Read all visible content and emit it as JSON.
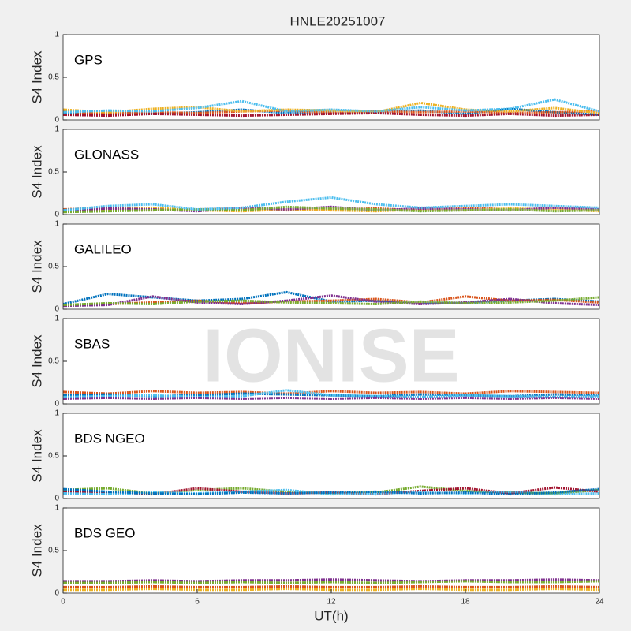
{
  "title": "HNLE20251007",
  "watermark": "IONISE",
  "chart_data": [
    {
      "type": "line",
      "label": "GPS",
      "ylabel": "S4 Index",
      "xlim": [
        0,
        24
      ],
      "ylim": [
        0,
        1
      ],
      "yticks": [
        0,
        0.5,
        1
      ],
      "x": [
        0,
        2,
        4,
        6,
        8,
        10,
        12,
        14,
        16,
        18,
        20,
        22,
        24
      ],
      "series": [
        {
          "color": "#0072BD",
          "values": [
            0.08,
            0.1,
            0.07,
            0.09,
            0.12,
            0.08,
            0.1,
            0.09,
            0.11,
            0.07,
            0.13,
            0.09,
            0.06
          ]
        },
        {
          "color": "#D95319",
          "values": [
            0.1,
            0.07,
            0.09,
            0.08,
            0.1,
            0.11,
            0.08,
            0.1,
            0.09,
            0.1,
            0.08,
            0.09,
            0.1
          ]
        },
        {
          "color": "#EDB120",
          "values": [
            0.12,
            0.09,
            0.13,
            0.15,
            0.1,
            0.12,
            0.11,
            0.09,
            0.2,
            0.12,
            0.1,
            0.14,
            0.08
          ]
        },
        {
          "color": "#A2142F",
          "values": [
            0.06,
            0.05,
            0.07,
            0.06,
            0.05,
            0.06,
            0.07,
            0.08,
            0.06,
            0.05,
            0.07,
            0.05,
            0.06
          ]
        },
        {
          "color": "#4DBEEE",
          "values": [
            0.09,
            0.11,
            0.1,
            0.14,
            0.22,
            0.1,
            0.12,
            0.1,
            0.15,
            0.11,
            0.13,
            0.24,
            0.1
          ]
        }
      ]
    },
    {
      "type": "line",
      "label": "GLONASS",
      "ylabel": "S4 Index",
      "xlim": [
        0,
        24
      ],
      "ylim": [
        0,
        1
      ],
      "yticks": [
        0,
        0.5,
        1
      ],
      "x": [
        0,
        2,
        4,
        6,
        8,
        10,
        12,
        14,
        16,
        18,
        20,
        22,
        24
      ],
      "series": [
        {
          "color": "#D95319",
          "values": [
            0.06,
            0.08,
            0.05,
            0.06,
            0.07,
            0.05,
            0.06,
            0.07,
            0.05,
            0.08,
            0.06,
            0.07,
            0.05
          ]
        },
        {
          "color": "#EDB120",
          "values": [
            0.04,
            0.06,
            0.08,
            0.05,
            0.04,
            0.06,
            0.05,
            0.04,
            0.06,
            0.05,
            0.07,
            0.06,
            0.04
          ]
        },
        {
          "color": "#7E2F8E",
          "values": [
            0.05,
            0.07,
            0.06,
            0.04,
            0.08,
            0.06,
            0.09,
            0.05,
            0.07,
            0.06,
            0.05,
            0.08,
            0.06
          ]
        },
        {
          "color": "#77AC30",
          "values": [
            0.03,
            0.04,
            0.05,
            0.06,
            0.05,
            0.09,
            0.07,
            0.06,
            0.04,
            0.05,
            0.06,
            0.04,
            0.05
          ]
        },
        {
          "color": "#4DBEEE",
          "values": [
            0.05,
            0.1,
            0.12,
            0.06,
            0.08,
            0.15,
            0.2,
            0.12,
            0.08,
            0.1,
            0.12,
            0.1,
            0.08
          ]
        }
      ]
    },
    {
      "type": "line",
      "label": "GALILEO",
      "ylabel": "S4 Index",
      "xlim": [
        0,
        24
      ],
      "ylim": [
        0,
        1
      ],
      "yticks": [
        0,
        0.5,
        1
      ],
      "x": [
        0,
        2,
        4,
        6,
        8,
        10,
        12,
        14,
        16,
        18,
        20,
        22,
        24
      ],
      "series": [
        {
          "color": "#0072BD",
          "values": [
            0.06,
            0.18,
            0.14,
            0.1,
            0.12,
            0.2,
            0.09,
            0.1,
            0.08,
            0.07,
            0.1,
            0.12,
            0.09
          ]
        },
        {
          "color": "#D95319",
          "values": [
            0.05,
            0.06,
            0.08,
            0.1,
            0.07,
            0.09,
            0.1,
            0.12,
            0.08,
            0.15,
            0.1,
            0.11,
            0.08
          ]
        },
        {
          "color": "#7E2F8E",
          "values": [
            0.04,
            0.05,
            0.15,
            0.08,
            0.06,
            0.1,
            0.16,
            0.09,
            0.06,
            0.08,
            0.12,
            0.07,
            0.05
          ]
        },
        {
          "color": "#77AC30",
          "values": [
            0.05,
            0.07,
            0.06,
            0.09,
            0.1,
            0.08,
            0.07,
            0.06,
            0.09,
            0.07,
            0.08,
            0.1,
            0.14
          ]
        }
      ]
    },
    {
      "type": "line",
      "label": "SBAS",
      "ylabel": "S4 Index",
      "xlim": [
        0,
        24
      ],
      "ylim": [
        0,
        1
      ],
      "yticks": [
        0,
        0.5,
        1
      ],
      "x": [
        0,
        2,
        4,
        6,
        8,
        10,
        12,
        14,
        16,
        18,
        20,
        22,
        24
      ],
      "series": [
        {
          "color": "#D95319",
          "values": [
            0.14,
            0.12,
            0.15,
            0.13,
            0.14,
            0.12,
            0.15,
            0.13,
            0.14,
            0.12,
            0.15,
            0.14,
            0.13
          ]
        },
        {
          "color": "#0072BD",
          "values": [
            0.1,
            0.11,
            0.09,
            0.1,
            0.12,
            0.11,
            0.1,
            0.09,
            0.11,
            0.1,
            0.09,
            0.11,
            0.1
          ]
        },
        {
          "color": "#4DBEEE",
          "values": [
            0.08,
            0.09,
            0.1,
            0.08,
            0.09,
            0.16,
            0.1,
            0.09,
            0.08,
            0.1,
            0.09,
            0.08,
            0.09
          ]
        },
        {
          "color": "#7E2F8E",
          "values": [
            0.06,
            0.07,
            0.06,
            0.07,
            0.06,
            0.07,
            0.06,
            0.07,
            0.06,
            0.07,
            0.06,
            0.07,
            0.06
          ]
        }
      ]
    },
    {
      "type": "line",
      "label": "BDS NGEO",
      "ylabel": "S4 Index",
      "xlim": [
        0,
        24
      ],
      "ylim": [
        0,
        1
      ],
      "yticks": [
        0,
        0.5,
        1
      ],
      "x": [
        0,
        2,
        4,
        6,
        8,
        10,
        12,
        14,
        16,
        18,
        20,
        22,
        24
      ],
      "series": [
        {
          "color": "#77AC30",
          "values": [
            0.1,
            0.12,
            0.06,
            0.1,
            0.12,
            0.08,
            0.06,
            0.07,
            0.14,
            0.09,
            0.07,
            0.06,
            0.1
          ]
        },
        {
          "color": "#A2142F",
          "values": [
            0.08,
            0.06,
            0.05,
            0.12,
            0.08,
            0.06,
            0.07,
            0.05,
            0.09,
            0.12,
            0.06,
            0.13,
            0.08
          ]
        },
        {
          "color": "#4DBEEE",
          "values": [
            0.06,
            0.05,
            0.07,
            0.06,
            0.08,
            0.1,
            0.05,
            0.06,
            0.07,
            0.06,
            0.08,
            0.05,
            0.06
          ]
        },
        {
          "color": "#0072BD",
          "values": [
            0.11,
            0.08,
            0.06,
            0.05,
            0.07,
            0.06,
            0.07,
            0.08,
            0.06,
            0.07,
            0.05,
            0.07,
            0.11
          ]
        }
      ]
    },
    {
      "type": "line",
      "label": "BDS GEO",
      "ylabel": "S4 Index",
      "xlabel": "UT(h)",
      "xlim": [
        0,
        24
      ],
      "ylim": [
        0,
        1
      ],
      "yticks": [
        0,
        0.5,
        1
      ],
      "xticks": [
        0,
        6,
        12,
        18,
        24
      ],
      "x": [
        0,
        2,
        4,
        6,
        8,
        10,
        12,
        14,
        16,
        18,
        20,
        22,
        24
      ],
      "series": [
        {
          "color": "#7E2F8E",
          "values": [
            0.14,
            0.14,
            0.15,
            0.14,
            0.15,
            0.15,
            0.16,
            0.15,
            0.14,
            0.15,
            0.15,
            0.16,
            0.15
          ]
        },
        {
          "color": "#77AC30",
          "values": [
            0.12,
            0.12,
            0.13,
            0.12,
            0.13,
            0.12,
            0.13,
            0.12,
            0.13,
            0.14,
            0.13,
            0.13,
            0.14
          ]
        },
        {
          "color": "#D95319",
          "values": [
            0.07,
            0.07,
            0.08,
            0.07,
            0.07,
            0.08,
            0.07,
            0.07,
            0.08,
            0.07,
            0.07,
            0.08,
            0.07
          ]
        },
        {
          "color": "#EDB120",
          "values": [
            0.04,
            0.04,
            0.05,
            0.04,
            0.04,
            0.05,
            0.04,
            0.04,
            0.05,
            0.04,
            0.04,
            0.05,
            0.04
          ]
        }
      ]
    }
  ]
}
